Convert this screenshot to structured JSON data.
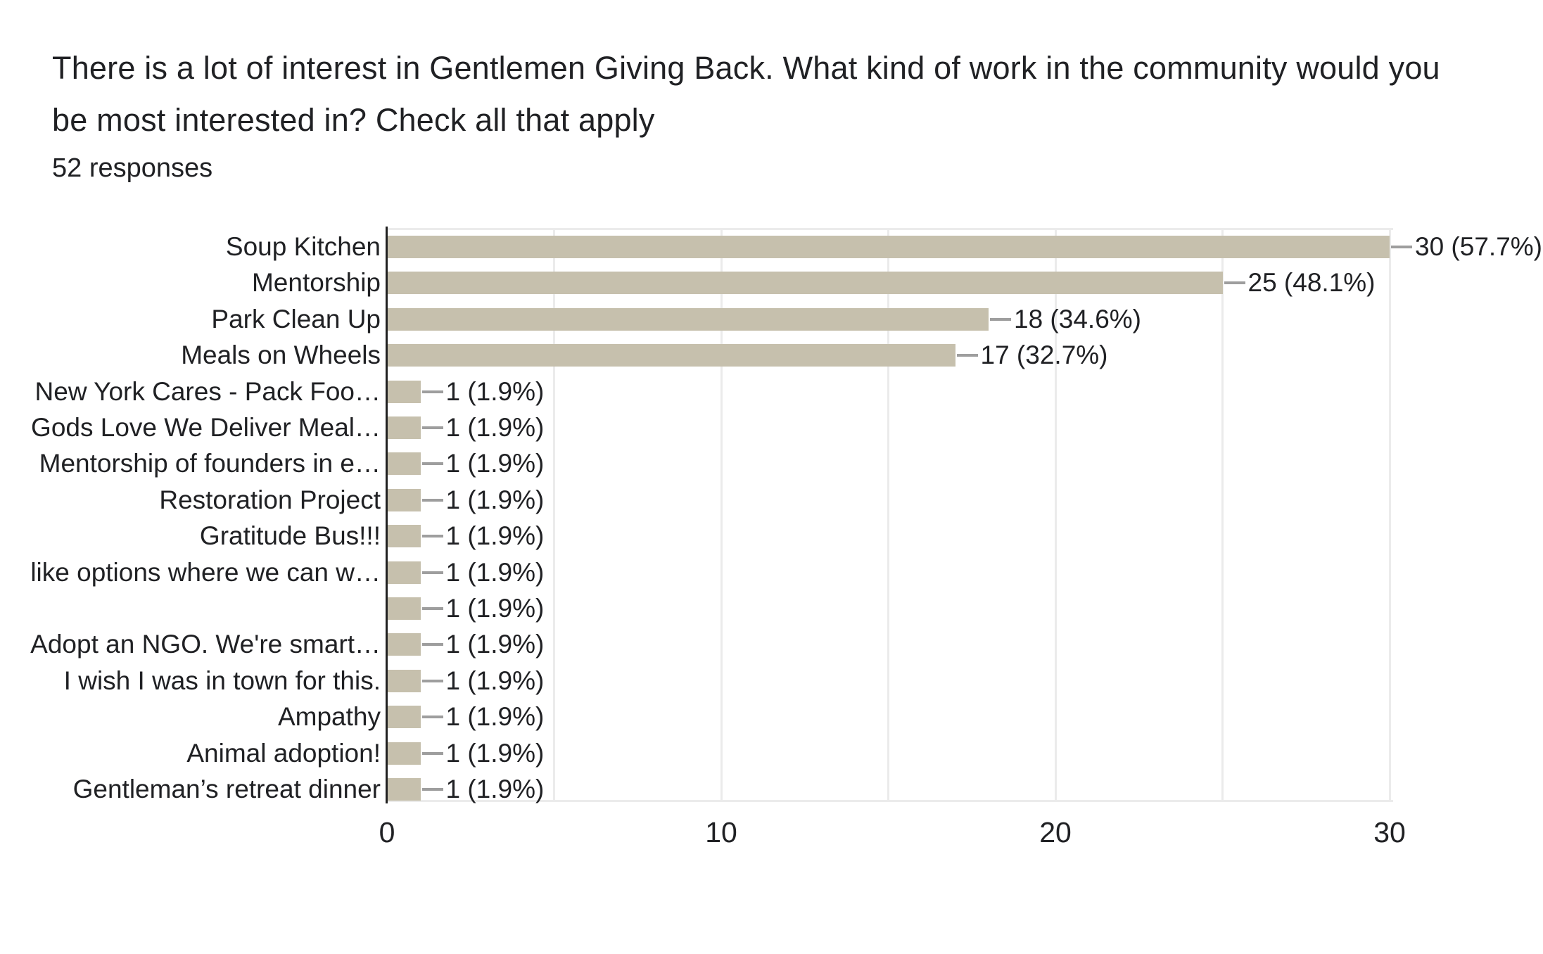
{
  "header": {
    "title": "There is a lot of interest in Gentlemen Giving Back. What kind of work in the community would you\nbe most interested in? Check all that apply",
    "response_count": "52 responses"
  },
  "chart_data": {
    "type": "bar",
    "orientation": "horizontal",
    "title": "There is a lot of interest in Gentlemen Giving Back. What kind of work in the community would you be most interested in? Check all that apply",
    "subtitle": "52 responses",
    "total_responses": 52,
    "categories": [
      "Soup Kitchen",
      "Mentorship",
      "Park Clean Up",
      "Meals on Wheels",
      "New York Cares - Pack Foo…",
      "Gods Love We Deliver Meal…",
      "Mentorship of founders in e…",
      "Restoration Project",
      "Gratitude Bus!!!",
      "like options where we can w…",
      "",
      "Adopt an NGO. We're smart…",
      "I wish I was in town for this.",
      "Ampathy",
      "Animal adoption!",
      "Gentleman’s retreat dinner"
    ],
    "values": [
      30,
      25,
      18,
      17,
      1,
      1,
      1,
      1,
      1,
      1,
      1,
      1,
      1,
      1,
      1,
      1
    ],
    "value_labels": [
      "30 (57.7%)",
      "25 (48.1%)",
      "18 (34.6%)",
      "17 (32.7%)",
      "1 (1.9%)",
      "1 (1.9%)",
      "1 (1.9%)",
      "1 (1.9%)",
      "1 (1.9%)",
      "1 (1.9%)",
      "1 (1.9%)",
      "1 (1.9%)",
      "1 (1.9%)",
      "1 (1.9%)",
      "1 (1.9%)",
      "1 (1.9%)"
    ],
    "xlabel": "",
    "ylabel": "",
    "xlim": [
      0,
      30
    ],
    "x_ticks": [
      "0",
      "10",
      "20",
      "30"
    ],
    "gridline_step": 5,
    "grid": "on",
    "legend": "none",
    "colors": {
      "bar": "#c6c0ad",
      "axis": "#212121",
      "gridline": "#ebebeb",
      "leader": "#9e9e9e",
      "text": "#202124"
    }
  }
}
